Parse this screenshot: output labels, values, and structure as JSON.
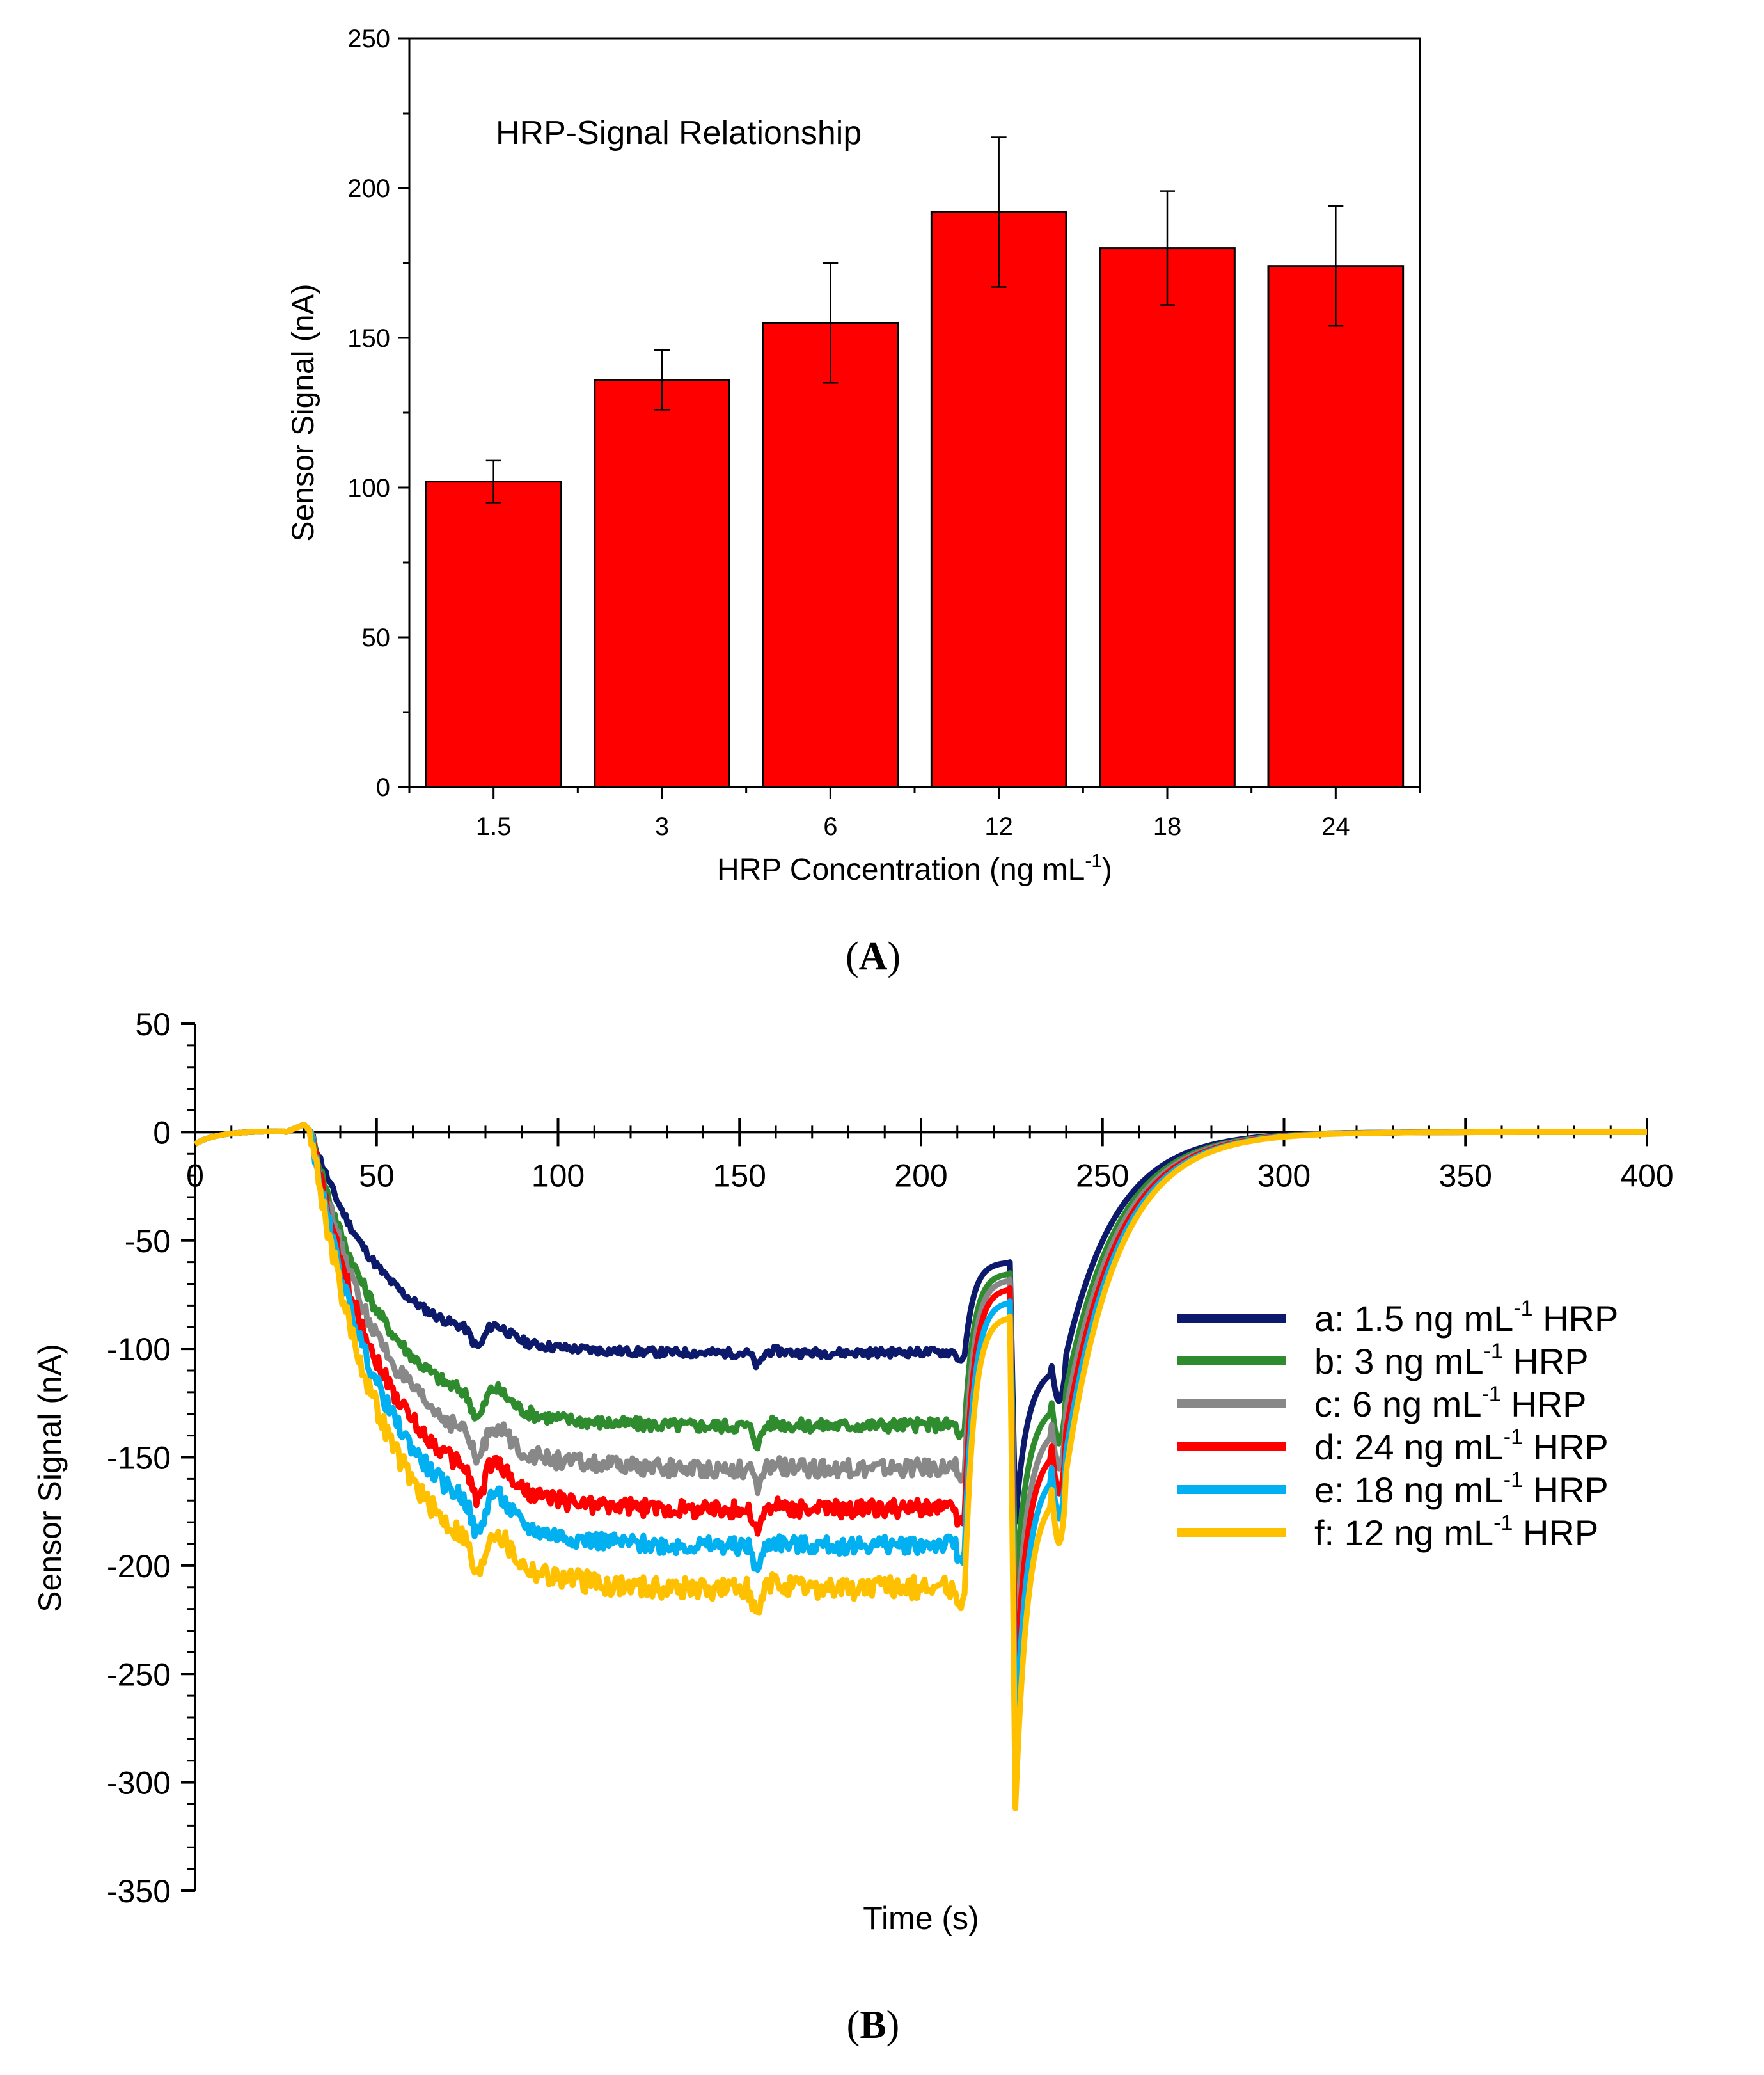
{
  "panels": {
    "a_label": "(A)",
    "b_label": "(B)"
  },
  "chart_data": [
    {
      "type": "bar",
      "annotation": "HRP-Signal Relationship",
      "xlabel": "HRP Concentration (ng mL",
      "xlabel_sup": "-1",
      "xlabel_suffix": ")",
      "ylabel": "Sensor Signal (nA)",
      "categories": [
        "1.5",
        "3",
        "6",
        "12",
        "18",
        "24"
      ],
      "values": [
        102,
        136,
        155,
        192,
        180,
        174
      ],
      "errors": [
        7,
        10,
        20,
        25,
        19,
        20
      ],
      "ylim": [
        0,
        250
      ],
      "yticks": [
        0,
        50,
        100,
        150,
        200,
        250
      ],
      "bar_color": "#ff0000",
      "grid": false
    },
    {
      "type": "line",
      "xlabel": "Time (s)",
      "ylabel": "Sensor Signal (nA)",
      "xlim": [
        0,
        400
      ],
      "ylim": [
        -350,
        50
      ],
      "xticks": [
        0,
        50,
        100,
        150,
        200,
        250,
        300,
        350,
        400
      ],
      "yticks": [
        50,
        0,
        -50,
        -100,
        -150,
        -200,
        -250,
        -300,
        -350
      ],
      "grid": false,
      "legend_position": "right",
      "series": [
        {
          "name_pre": "a: 1.5 ng mL",
          "name_sup": "-1",
          "name_post": " HRP",
          "color": "#0d1a6b",
          "plateau": -103,
          "pre_spike": -60,
          "min": -180,
          "bump": -108,
          "noise": 2
        },
        {
          "name_pre": "b: 3 ng mL",
          "name_sup": "-1",
          "name_post": " HRP",
          "color": "#2e8b2e",
          "plateau": -137,
          "pre_spike": -65,
          "min": -212,
          "bump": -125,
          "noise": 3
        },
        {
          "name_pre": "c: 6 ng mL",
          "name_sup": "-1",
          "name_post": " HRP",
          "color": "#888888",
          "plateau": -157,
          "pre_spike": -68,
          "min": -243,
          "bump": -135,
          "noise": 4
        },
        {
          "name_pre": "d: 24 ng mL",
          "name_sup": "-1",
          "name_post": " HRP",
          "color": "#ff0000",
          "plateau": -176,
          "pre_spike": -72,
          "min": -258,
          "bump": -145,
          "noise": 4
        },
        {
          "name_pre": "e: 18 ng mL",
          "name_sup": "-1",
          "name_post": " HRP",
          "color": "#00b0f0",
          "plateau": -193,
          "pre_spike": -78,
          "min": -283,
          "bump": -155,
          "noise": 4
        },
        {
          "name_pre": "f: 12 ng mL",
          "name_sup": "-1",
          "name_post": " HRP",
          "color": "#ffc000",
          "plateau": -213,
          "pre_spike": -85,
          "min": -312,
          "bump": -165,
          "noise": 5
        }
      ]
    }
  ]
}
